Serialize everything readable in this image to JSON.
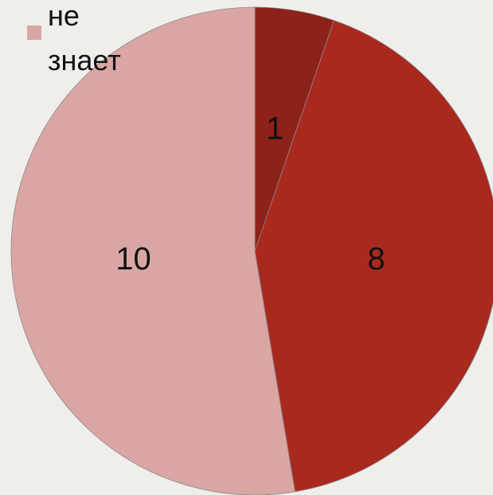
{
  "chart_data": {
    "type": "pie",
    "categories": [
      null,
      null,
      "не знает"
    ],
    "values": [
      1,
      8,
      10
    ],
    "colors": [
      "#8c2219",
      "#a9291f",
      "#d9a6a3"
    ],
    "legend": "top-left"
  }
}
